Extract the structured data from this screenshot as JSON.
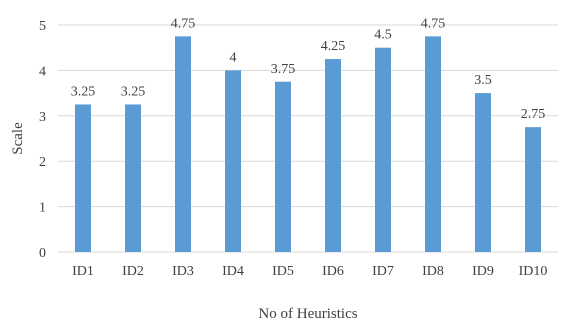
{
  "chart_data": {
    "type": "bar",
    "categories": [
      "ID1",
      "ID2",
      "ID3",
      "ID4",
      "ID5",
      "ID6",
      "ID7",
      "ID8",
      "ID9",
      "ID10"
    ],
    "values": [
      3.25,
      3.25,
      4.75,
      4,
      3.75,
      4.25,
      4.5,
      4.75,
      3.5,
      2.75
    ],
    "data_labels": [
      "3.25",
      "3.25",
      "4.75",
      "4",
      "3.75",
      "4.25",
      "4.5",
      "4.75",
      "3.5",
      "2.75"
    ],
    "title": "",
    "xlabel": "No of Heuristics",
    "ylabel": "Scale",
    "ylim": [
      0,
      5
    ],
    "yticks": [
      "0",
      "1",
      "2",
      "3",
      "4",
      "5"
    ],
    "grid": true,
    "bar_color": "#5b9bd5",
    "grid_color": "#d9d9d9",
    "legend": "none"
  }
}
